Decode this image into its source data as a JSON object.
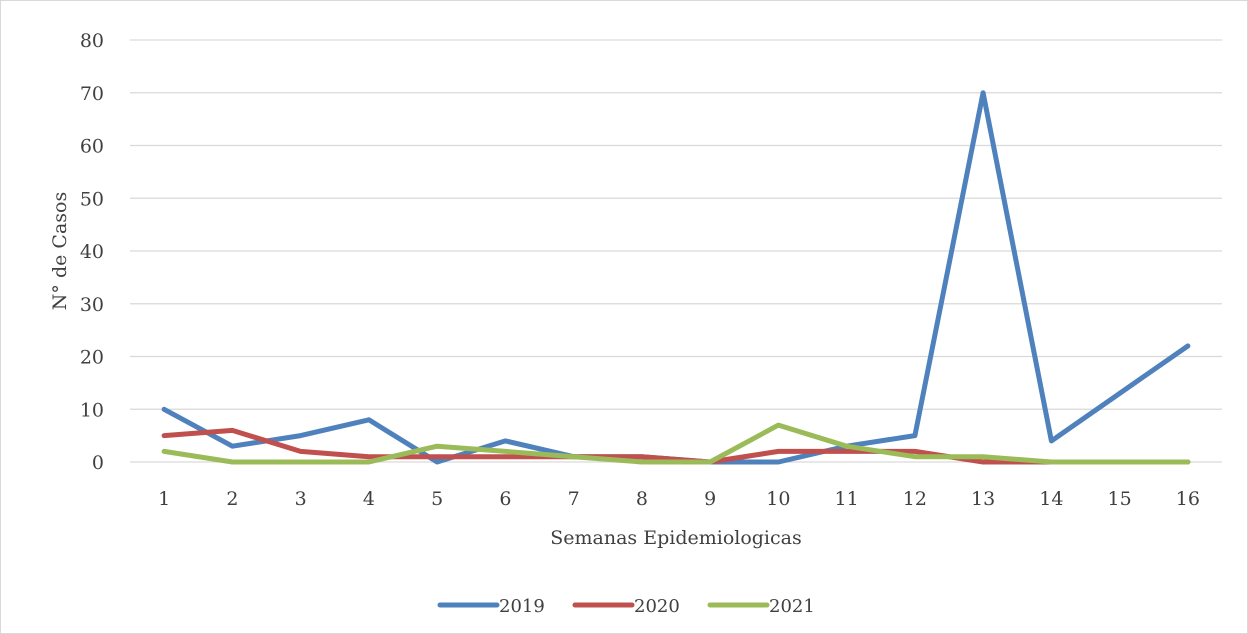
{
  "chart_data": {
    "type": "line",
    "title": "",
    "xlabel": "Semanas Epidemiologicas",
    "ylabel": "N° de Casos",
    "x": [
      "1",
      "2",
      "3",
      "4",
      "5",
      "6",
      "7",
      "8",
      "9",
      "10",
      "11",
      "12",
      "13",
      "14",
      "15",
      "16"
    ],
    "ylim": [
      0,
      80
    ],
    "yticks": [
      "0",
      "10",
      "20",
      "30",
      "40",
      "50",
      "60",
      "70",
      "80"
    ],
    "grid": true,
    "legend_position": "bottom",
    "series": [
      {
        "name": "2019",
        "color": "#4F81BD",
        "values": [
          10,
          3,
          5,
          8,
          0,
          4,
          1,
          1,
          0,
          0,
          3,
          5,
          70,
          4,
          13,
          22
        ]
      },
      {
        "name": "2020",
        "color": "#C0504D",
        "values": [
          5,
          6,
          2,
          1,
          1,
          1,
          1,
          1,
          0,
          2,
          2,
          2,
          0,
          0,
          0,
          0
        ]
      },
      {
        "name": "2021",
        "color": "#9BBB59",
        "values": [
          2,
          0,
          0,
          0,
          3,
          2,
          1,
          0,
          0,
          7,
          3,
          1,
          1,
          0,
          0,
          0
        ]
      }
    ]
  }
}
